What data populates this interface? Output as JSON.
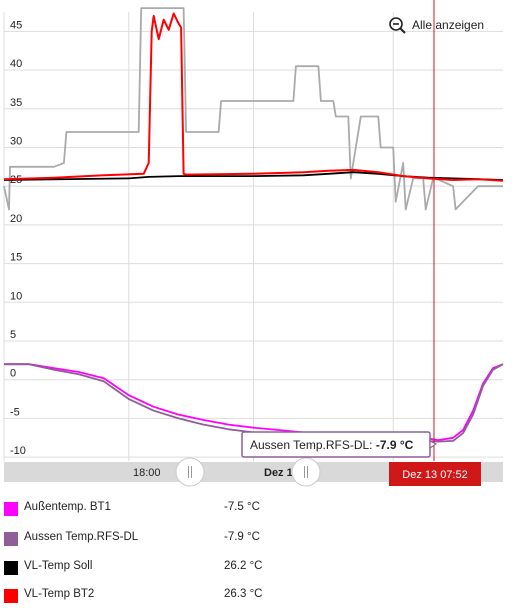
{
  "toolbar": {
    "show_all_label": "Alle anzeigen",
    "zoom_icon": "zoom-out-icon"
  },
  "timeline": {
    "labels": [
      "18:00",
      "Dez 13"
    ],
    "cursor_label": "Dez 13 07:52",
    "cursor_color": "#d01818"
  },
  "tooltip": {
    "name": "Aussen Temp.RFS-DL:",
    "value": "-7.9 °C",
    "border_color": "#8f5e98"
  },
  "legend": [
    {
      "name": "Außentemp. BT1",
      "value": "-7.5 °C",
      "color": "#ff00ff"
    },
    {
      "name": "Aussen Temp.RFS-DL",
      "value": "-7.9 °C",
      "color": "#8f5e98"
    },
    {
      "name": "VL-Temp Soll",
      "value": "26.2 °C",
      "color": "#000000"
    },
    {
      "name": "VL-Temp BT2",
      "value": "26.3 °C",
      "color": "#ff0000"
    }
  ],
  "chart_data": {
    "type": "line",
    "y_ticks": [
      45,
      40,
      35,
      30,
      25,
      20,
      15,
      10,
      5,
      0,
      -5,
      -10
    ],
    "ylim": [
      -10.5,
      47.5
    ],
    "xlim": [
      0,
      1
    ],
    "grid": true,
    "series": [
      {
        "name": "Außentemp. BT1",
        "color": "#ff00ff",
        "x": [
          0,
          0.05,
          0.1,
          0.15,
          0.2,
          0.25,
          0.3,
          0.35,
          0.4,
          0.45,
          0.5,
          0.55,
          0.6,
          0.65,
          0.7,
          0.75,
          0.8,
          0.84,
          0.87,
          0.9,
          0.92,
          0.94,
          0.96,
          0.98,
          1.0
        ],
        "y": [
          2.0,
          2.0,
          1.5,
          1.0,
          0.2,
          -2.0,
          -3.5,
          -4.5,
          -5.2,
          -5.8,
          -6.2,
          -6.5,
          -6.8,
          -7.0,
          -7.2,
          -7.4,
          -7.5,
          -7.5,
          -7.8,
          -7.5,
          -6.5,
          -4.0,
          -0.5,
          1.5,
          2.0
        ]
      },
      {
        "name": "Aussen Temp.RFS-DL",
        "color": "#8f5e98",
        "x": [
          0,
          0.05,
          0.1,
          0.15,
          0.2,
          0.25,
          0.3,
          0.35,
          0.4,
          0.45,
          0.5,
          0.55,
          0.6,
          0.65,
          0.7,
          0.75,
          0.8,
          0.84,
          0.87,
          0.9,
          0.92,
          0.94,
          0.96,
          0.98,
          1.0
        ],
        "y": [
          2.0,
          2.0,
          1.3,
          0.7,
          -0.2,
          -2.5,
          -4.0,
          -5.0,
          -5.8,
          -6.4,
          -6.8,
          -7.0,
          -7.3,
          -7.5,
          -7.7,
          -7.8,
          -7.9,
          -7.9,
          -8.0,
          -7.9,
          -6.9,
          -4.5,
          -0.8,
          1.3,
          2.0
        ]
      },
      {
        "name": "VL-Temp Soll",
        "color": "#000000",
        "x": [
          0,
          0.25,
          0.29,
          0.35,
          0.5,
          0.6,
          0.65,
          0.7,
          0.75,
          0.8,
          0.85,
          0.9,
          0.95,
          1.0
        ],
        "y": [
          25.8,
          26.0,
          26.2,
          26.3,
          26.3,
          26.4,
          26.6,
          26.8,
          26.6,
          26.3,
          26.1,
          26.0,
          25.9,
          25.8
        ]
      },
      {
        "name": "VL-Temp BT2",
        "color": "#ff0000",
        "x": [
          0,
          0.1,
          0.2,
          0.28,
          0.29,
          0.296,
          0.3,
          0.31,
          0.32,
          0.33,
          0.34,
          0.35,
          0.355,
          0.36,
          0.365,
          0.5,
          0.6,
          0.65,
          0.7,
          0.75,
          0.8,
          0.85,
          0.9,
          0.95,
          1.0
        ],
        "y": [
          25.9,
          26.1,
          26.4,
          26.6,
          28.0,
          45.0,
          47.0,
          44.0,
          46.5,
          45.2,
          47.3,
          46.0,
          45.5,
          26.6,
          26.5,
          26.6,
          26.8,
          27.0,
          27.1,
          26.8,
          26.3,
          26.0,
          25.8,
          25.9,
          25.7
        ]
      },
      {
        "name": "",
        "color": "#aaaaaa",
        "x": [
          0,
          0.01,
          0.012,
          0.1,
          0.12,
          0.125,
          0.27,
          0.275,
          0.28,
          0.285,
          0.36,
          0.365,
          0.43,
          0.435,
          0.58,
          0.585,
          0.63,
          0.635,
          0.66,
          0.665,
          0.69,
          0.695,
          0.715,
          0.72,
          0.75,
          0.755,
          0.78,
          0.785,
          0.8,
          0.805,
          0.82,
          0.84,
          0.845,
          0.86,
          0.865,
          0.9,
          0.905,
          0.95,
          0.955,
          1.0
        ],
        "y": [
          25.0,
          22.0,
          27.5,
          27.5,
          28.0,
          32.0,
          32.0,
          48.0,
          48.0,
          48.0,
          48.0,
          32.0,
          32.0,
          36.0,
          36.0,
          40.5,
          40.5,
          36.0,
          36.0,
          34.0,
          34.0,
          26.0,
          34.0,
          34.0,
          34.0,
          30.0,
          30.0,
          23.0,
          28.0,
          22.0,
          26.0,
          26.0,
          22.0,
          26.0,
          26.0,
          25.0,
          22.0,
          25.0,
          25.0,
          25.0
        ]
      }
    ]
  }
}
